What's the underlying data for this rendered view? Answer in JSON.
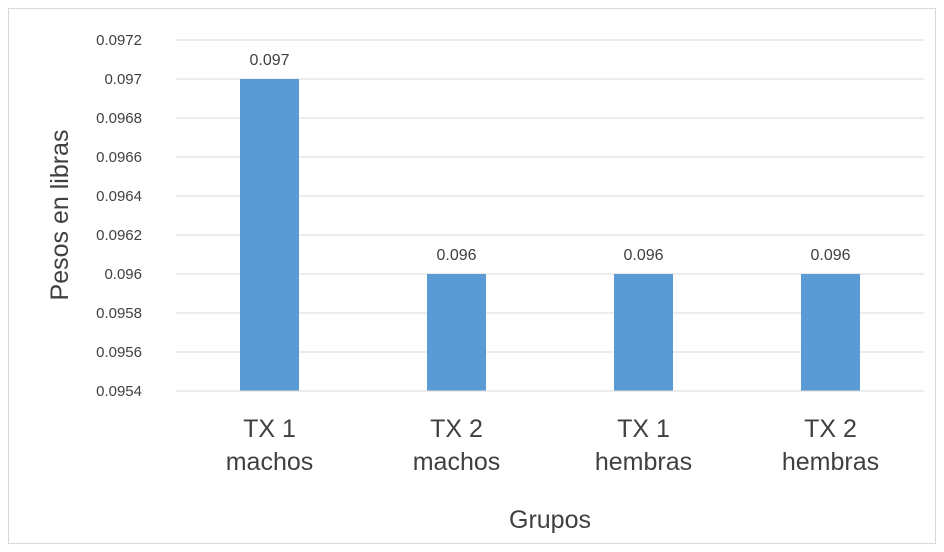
{
  "chart_data": {
    "type": "bar",
    "title": "",
    "xlabel": "Grupos",
    "ylabel": "Pesos en libras",
    "categories": [
      [
        "TX 1",
        "machos"
      ],
      [
        "TX 2",
        "machos"
      ],
      [
        "TX 1",
        "hembras"
      ],
      [
        "TX 2",
        "hembras"
      ]
    ],
    "values": [
      0.097,
      0.096,
      0.096,
      0.096
    ],
    "data_labels": [
      "0.097",
      "0.096",
      "0.096",
      "0.096"
    ],
    "ylim": [
      0.0954,
      0.0972
    ],
    "yticks": [
      "0.0954",
      "0.0956",
      "0.0958",
      "0.096",
      "0.0962",
      "0.0964",
      "0.0966",
      "0.0968",
      "0.097",
      "0.0972"
    ],
    "grid": true,
    "legend": "none",
    "colors": {
      "bar": "#5b9bd5",
      "grid": "#d9d9d9",
      "text": "#404040"
    }
  }
}
